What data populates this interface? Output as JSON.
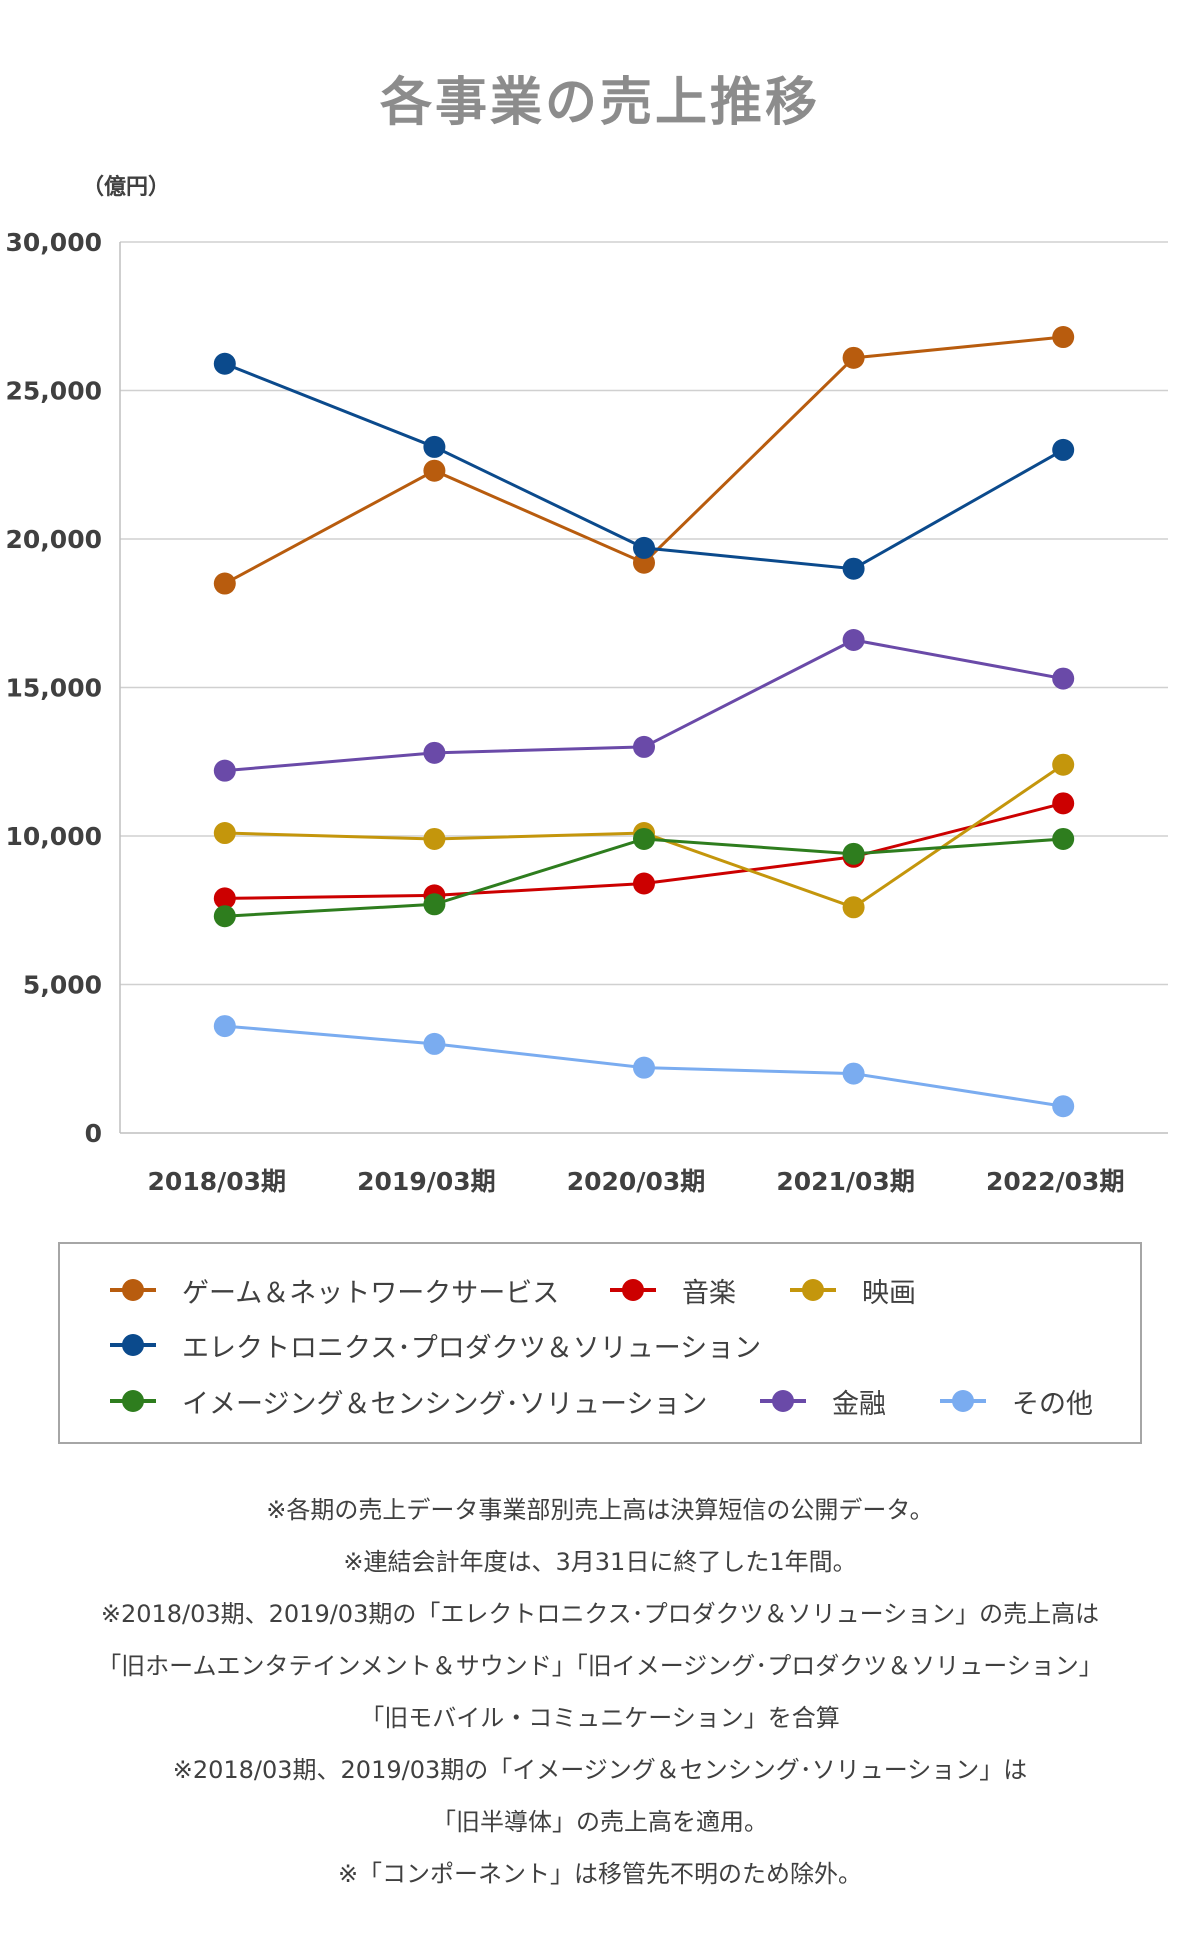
{
  "chart_data": {
    "type": "line",
    "title": "各事業の売上推移",
    "unit": "（億円）",
    "categories": [
      "2018/03期",
      "2019/03期",
      "2020/03期",
      "2021/03期",
      "2022/03期"
    ],
    "ylim": [
      0,
      30000
    ],
    "yticks": [
      "0",
      "5,000",
      "10,000",
      "15,000",
      "20,000",
      "25,000",
      "30,000"
    ],
    "grid": true,
    "legend_position": "bottom",
    "series": [
      {
        "name": "ゲーム＆ネットワークサービス",
        "color": "#b85c0e",
        "values": [
          18500,
          22300,
          19200,
          26100,
          26800
        ]
      },
      {
        "name": "音楽",
        "color": "#cc0000",
        "values": [
          7900,
          8000,
          8400,
          9300,
          11100
        ]
      },
      {
        "name": "映画",
        "color": "#c4960c",
        "values": [
          10100,
          9900,
          10100,
          7600,
          12400
        ]
      },
      {
        "name": "エレクトロニクス･プロダクツ＆ソリューション",
        "color": "#0b4a8c",
        "values": [
          25900,
          23100,
          19700,
          19000,
          23000
        ]
      },
      {
        "name": "イメージング＆センシング･ソリューション",
        "color": "#2e7d1e",
        "values": [
          7300,
          7700,
          9900,
          9400,
          9900
        ]
      },
      {
        "name": "金融",
        "color": "#6a4aa8",
        "values": [
          12200,
          12800,
          13000,
          16600,
          15300
        ]
      },
      {
        "name": "その他",
        "color": "#7aacf0",
        "values": [
          3600,
          3000,
          2200,
          2000,
          900
        ]
      }
    ]
  },
  "notes": [
    "※各期の売上データ事業部別売上高は決算短信の公開データ。",
    "※連結会計年度は、3月31日に終了した1年間。",
    "※2018/03期、2019/03期の「エレクトロニクス･プロダクツ＆ソリューション」の売上高は",
    "「旧ホームエンタテインメント＆サウンド」「旧イメージング･プロダクツ＆ソリューション」",
    "「旧モバイル・コミュニケーション」を合算",
    "※2018/03期、2019/03期の「イメージング＆センシング･ソリューション」は",
    "「旧半導体」の売上高を適用。",
    "※「コンポーネント」は移管先不明のため除外。"
  ]
}
